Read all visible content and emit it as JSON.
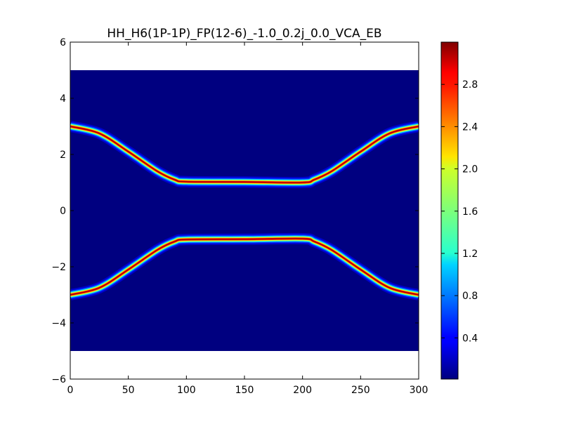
{
  "chart_data": {
    "type": "heatmap",
    "title": "HH_H6(1P-1P)_FP(12-6)_-1.0_0.2j_0.0_VCA_EB",
    "xlabel": "",
    "ylabel": "",
    "xlim": [
      0,
      300
    ],
    "ylim": [
      -6,
      6
    ],
    "data_extent": {
      "x": [
        0,
        300
      ],
      "y": [
        -5,
        5
      ]
    },
    "grid": false,
    "colormap": "jet",
    "x_ticks": [
      0,
      50,
      100,
      150,
      200,
      250,
      300
    ],
    "x_tick_labels": [
      "0",
      "50",
      "100",
      "150",
      "200",
      "250",
      "300"
    ],
    "y_ticks": [
      -6,
      -4,
      -2,
      0,
      2,
      4,
      6
    ],
    "y_tick_labels": [
      "−6",
      "−4",
      "−2",
      "0",
      "2",
      "4",
      "6"
    ],
    "colorbar": {
      "range": [
        0.01,
        3.2
      ],
      "ticks": [
        0.4,
        0.8,
        1.2,
        1.6,
        2.0,
        2.4,
        2.8
      ],
      "tick_labels": [
        "0.4",
        "0.8",
        "1.2",
        "1.6",
        "2.0",
        "2.4",
        "2.8"
      ]
    },
    "background_value": 0.01,
    "band_peak_value": 3.2,
    "band_width": 0.04,
    "bands": [
      {
        "x": [
          0,
          25,
          50,
          75,
          90,
          100,
          150,
          200,
          210,
          225,
          250,
          275,
          300
        ],
        "y": [
          3.0,
          2.75,
          2.1,
          1.4,
          1.1,
          1.03,
          1.02,
          1.0,
          1.1,
          1.4,
          2.1,
          2.75,
          3.0
        ]
      },
      {
        "x": [
          0,
          25,
          50,
          75,
          90,
          100,
          150,
          200,
          210,
          225,
          250,
          275,
          300
        ],
        "y": [
          -3.0,
          -2.75,
          -2.1,
          -1.4,
          -1.1,
          -1.03,
          -1.02,
          -1.0,
          -1.1,
          -1.4,
          -2.1,
          -2.75,
          -3.0
        ]
      }
    ]
  }
}
